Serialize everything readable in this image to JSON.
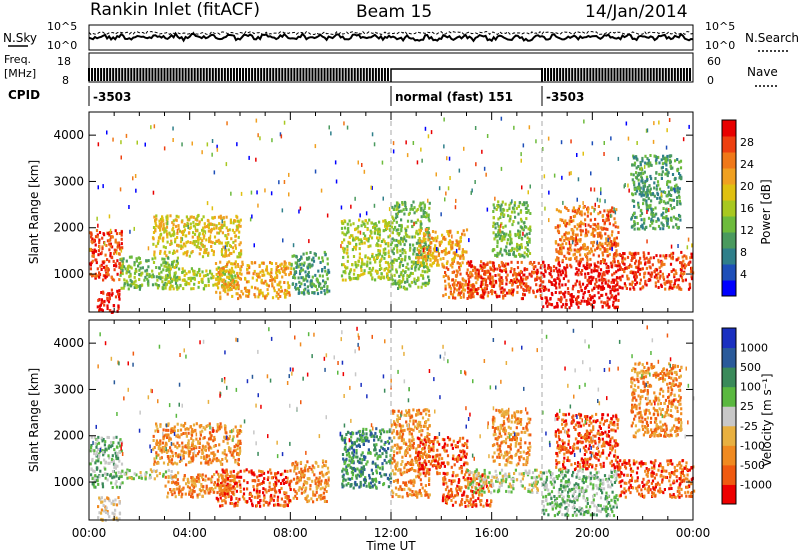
{
  "header": {
    "station": "Rankin Inlet (fitACF)",
    "beam": "Beam 15",
    "date": "14/Jan/2014"
  },
  "noise_panel": {
    "left_label": "N.Sky",
    "right_label": "N.Search",
    "left_ticks": [
      "10^5",
      "10^0"
    ],
    "right_ticks": [
      "10^5",
      "10^0"
    ]
  },
  "freq_panel": {
    "left_label_1": "Freq.",
    "left_label_2": "[MHz]",
    "left_ticks": [
      "18",
      "8"
    ],
    "right_label": "Nave",
    "right_ticks": [
      "60",
      "0"
    ]
  },
  "cpid_panel": {
    "label": "CPID",
    "segments": [
      {
        "start_hour": 0,
        "end_hour": 12,
        "text": "-3503"
      },
      {
        "start_hour": 12,
        "end_hour": 18,
        "text": "normal (fast) 151"
      },
      {
        "start_hour": 18,
        "end_hour": 24,
        "text": "-3503"
      }
    ]
  },
  "chart_data": [
    {
      "type": "heatmap",
      "name": "power",
      "xlabel": "",
      "ylabel": "Slant Range [km]",
      "xlim": [
        0,
        24
      ],
      "ylim": [
        180,
        4500
      ],
      "yticks": [
        1000,
        2000,
        3000,
        4000
      ],
      "colorbar": {
        "label": "Power [dB]",
        "ticks": [
          "4",
          "8",
          "12",
          "16",
          "20",
          "24",
          "28"
        ],
        "colors": [
          "#0000ff",
          "#1e4fb8",
          "#2f7f8a",
          "#4a9a5e",
          "#6dbb3c",
          "#a8c820",
          "#e0c010",
          "#f0a020",
          "#f07818",
          "#ee4010",
          "#e80000"
        ]
      },
      "echo_regions": [
        {
          "t": [
            0.0,
            1.3
          ],
          "r": [
            900,
            2000
          ],
          "level": 9
        },
        {
          "t": [
            0.3,
            1.2
          ],
          "r": [
            200,
            700
          ],
          "level": 10
        },
        {
          "t": [
            1.2,
            3.5
          ],
          "r": [
            700,
            1400
          ],
          "level": 4
        },
        {
          "t": [
            2.5,
            6.0
          ],
          "r": [
            1400,
            2300
          ],
          "level": 6
        },
        {
          "t": [
            3.0,
            5.8
          ],
          "r": [
            700,
            1200
          ],
          "level": 5
        },
        {
          "t": [
            5.0,
            8.0
          ],
          "r": [
            500,
            1300
          ],
          "level": 7
        },
        {
          "t": [
            8.0,
            9.5
          ],
          "r": [
            600,
            1500
          ],
          "level": 3
        },
        {
          "t": [
            10.0,
            12.0
          ],
          "r": [
            900,
            2200
          ],
          "level": 5
        },
        {
          "t": [
            12.0,
            13.5
          ],
          "r": [
            700,
            2600
          ],
          "level": 4
        },
        {
          "t": [
            13.0,
            15.0
          ],
          "r": [
            1200,
            2000
          ],
          "level": 7
        },
        {
          "t": [
            14.0,
            16.0
          ],
          "r": [
            500,
            1200
          ],
          "level": 8
        },
        {
          "t": [
            15.0,
            18.0
          ],
          "r": [
            500,
            1300
          ],
          "level": 9
        },
        {
          "t": [
            16.0,
            17.5
          ],
          "r": [
            1400,
            2600
          ],
          "level": 4
        },
        {
          "t": [
            18.0,
            21.0
          ],
          "r": [
            300,
            1300
          ],
          "level": 10
        },
        {
          "t": [
            18.5,
            21.0
          ],
          "r": [
            1300,
            2500
          ],
          "level": 8
        },
        {
          "t": [
            21.0,
            24.0
          ],
          "r": [
            700,
            1500
          ],
          "level": 9
        },
        {
          "t": [
            21.5,
            23.5
          ],
          "r": [
            2000,
            3600
          ],
          "level": 3
        }
      ]
    },
    {
      "type": "heatmap",
      "name": "velocity",
      "xlabel": "Time UT",
      "ylabel": "Slant Range [km]",
      "xlim": [
        0,
        24
      ],
      "ylim": [
        180,
        4500
      ],
      "yticks": [
        1000,
        2000,
        3000,
        4000
      ],
      "xticks": [
        "00:00",
        "04:00",
        "08:00",
        "12:00",
        "16:00",
        "20:00",
        "00:00"
      ],
      "colorbar": {
        "label": "Velocity [m s⁻¹]",
        "ticks": [
          "-1000",
          "-500",
          "-100",
          "-25",
          "25",
          "100",
          "500",
          "1000"
        ],
        "colors": [
          "#ee0000",
          "#f05a10",
          "#f08a20",
          "#e8b040",
          "#c8c8c8",
          "#5ab840",
          "#3a8a5a",
          "#2a5a9a",
          "#1a30c0"
        ]
      },
      "echo_regions": [
        {
          "t": [
            0.0,
            1.3
          ],
          "r": [
            900,
            2000
          ],
          "level": 5
        },
        {
          "t": [
            0.3,
            1.2
          ],
          "r": [
            200,
            700
          ],
          "level": 3
        },
        {
          "t": [
            1.2,
            3.5
          ],
          "r": [
            1100,
            1300
          ],
          "level": 4
        },
        {
          "t": [
            2.5,
            6.0
          ],
          "r": [
            1400,
            2300
          ],
          "level": 2
        },
        {
          "t": [
            3.0,
            5.8
          ],
          "r": [
            700,
            1200
          ],
          "level": 2
        },
        {
          "t": [
            5.0,
            8.0
          ],
          "r": [
            500,
            1300
          ],
          "level": 1
        },
        {
          "t": [
            8.0,
            9.5
          ],
          "r": [
            600,
            1500
          ],
          "level": 2
        },
        {
          "t": [
            10.0,
            12.0
          ],
          "r": [
            900,
            2200
          ],
          "level": 6
        },
        {
          "t": [
            12.0,
            13.5
          ],
          "r": [
            700,
            2600
          ],
          "level": 2
        },
        {
          "t": [
            13.0,
            15.0
          ],
          "r": [
            1200,
            2000
          ],
          "level": 1
        },
        {
          "t": [
            14.0,
            16.0
          ],
          "r": [
            500,
            1200
          ],
          "level": 1
        },
        {
          "t": [
            15.0,
            18.0
          ],
          "r": [
            800,
            1300
          ],
          "level": 4
        },
        {
          "t": [
            16.0,
            17.5
          ],
          "r": [
            1400,
            2600
          ],
          "level": 2
        },
        {
          "t": [
            18.0,
            21.0
          ],
          "r": [
            300,
            1300
          ],
          "level": 5
        },
        {
          "t": [
            18.5,
            21.0
          ],
          "r": [
            1300,
            2500
          ],
          "level": 1
        },
        {
          "t": [
            21.0,
            24.0
          ],
          "r": [
            700,
            1500
          ],
          "level": 1
        },
        {
          "t": [
            21.5,
            23.5
          ],
          "r": [
            2000,
            3600
          ],
          "level": 2
        }
      ]
    }
  ]
}
